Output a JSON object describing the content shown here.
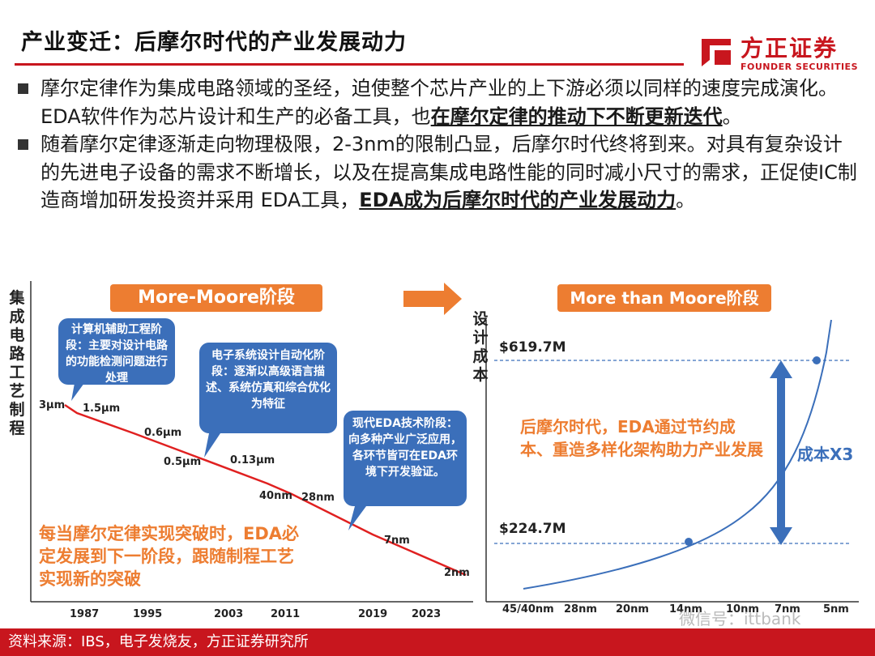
{
  "header": {
    "title": "产业变迁：后摩尔时代的产业发展动力",
    "logo_cn": "方正证券",
    "logo_en": "FOUNDER SECURITIES"
  },
  "bullets": [
    {
      "text_before": "摩尔定律作为集成电路领域的圣经，迫使整个芯片产业的上下游必须以同样的速度完成演化。EDA软件作为芯片设计和生产的必备工具，也",
      "emphasis": "在摩尔定律的推动下不断更新迭代",
      "text_after": "。"
    },
    {
      "text_before": "随着摩尔定律逐渐走向物理极限，2-3nm的限制凸显，后摩尔时代终将到来。对具有复杂设计的先进电子设备的需求不断增长，以及在提高集成电路性能的同时减小尺寸的需求，正促使IC制造商增加研发投资并采用 EDA工具，",
      "emphasis": "EDA成为后摩尔时代的产业发展动力",
      "text_after": "。"
    }
  ],
  "left_chart": {
    "stage_label": "More-Moore阶段",
    "y_axis_label": "集成电路工艺制程",
    "x_ticks": [
      "1987",
      "1995",
      "2003",
      "2011",
      "2019",
      "2023"
    ],
    "points": [
      "3μm",
      "1.5μm",
      "0.6μm",
      "0.5μm",
      "0.13μm",
      "40nm",
      "28nm",
      "7nm",
      "2nm"
    ],
    "callouts": [
      "计算机辅助工程阶段：主要对设计电路的功能检测问题进行处理",
      "电子系统设计自动化阶段：逐渐以高级语言描述、系统仿真和综合优化为特征",
      "现代EDA技术阶段：向多种产业广泛应用，各环节皆可在EDA环境下开发验证。"
    ],
    "summary": "每当摩尔定律实现突破时，EDA必定发展到下一阶段，跟随制程工艺实现新的突破",
    "line_color": "#e02020",
    "callout_color": "#3b6fba"
  },
  "right_chart": {
    "stage_label": "More than Moore阶段",
    "y_axis_label": "设计成本",
    "top_value": "$619.7M",
    "bottom_value": "$224.7M",
    "multiplier": "成本X3",
    "x_ticks": [
      "45/40nm",
      "28nm",
      "20nm",
      "14nm",
      "10nm",
      "7nm",
      "5nm"
    ],
    "summary": "后摩尔时代，EDA通过节约成本、重造多样化架构助力产业发展",
    "curve_color": "#3b6fba"
  },
  "footer": {
    "source": "资料来源：IBS，电子发烧友，方正证券研究所",
    "watermark": "微信号：ittbank"
  }
}
